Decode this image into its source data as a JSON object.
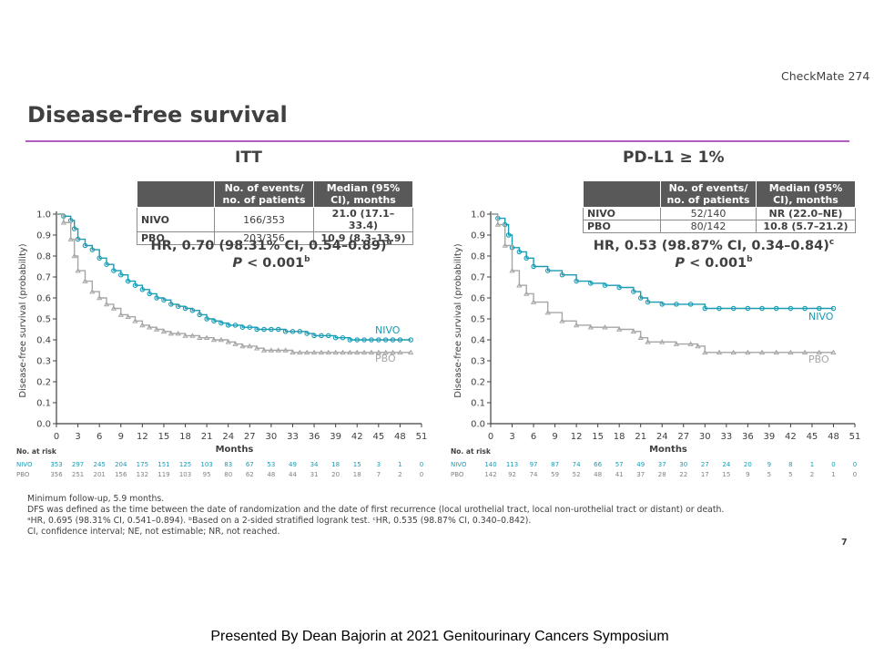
{
  "header": {
    "trial_name": "CheckMate 274",
    "title": "Disease-free survival"
  },
  "colors": {
    "nivo": "#1a9bb3",
    "pbo": "#a6a6a6",
    "rule": "#b05fc0",
    "table_header": "#595959"
  },
  "panels": [
    {
      "title": "ITT",
      "table": {
        "headers": [
          "No. of events/ no. of patients",
          "Median (95% CI), months"
        ],
        "rows": [
          {
            "arm": "NIVO",
            "events": "166/353",
            "median": "21.0 (17.1–33.4)"
          },
          {
            "arm": "PBO",
            "events": "203/356",
            "median": "10.9 (8.3–13.9)"
          }
        ]
      },
      "hr_prefix": "HR, 0.70 (98.31% CI, 0.54–0.89)",
      "hr_sup": "a",
      "p_italic": "P",
      "p_rest": " < 0.001",
      "p_sup": "b",
      "risk": {
        "title": "No. at risk",
        "rows": [
          {
            "arm": "NIVO",
            "values": [
              "353",
              "297",
              "245",
              "204",
              "175",
              "151",
              "125",
              "103",
              "83",
              "67",
              "53",
              "49",
              "34",
              "18",
              "15",
              "3",
              "1",
              "0"
            ]
          },
          {
            "arm": "PBO",
            "values": [
              "356",
              "251",
              "201",
              "156",
              "132",
              "119",
              "103",
              "95",
              "80",
              "62",
              "48",
              "44",
              "31",
              "20",
              "18",
              "7",
              "2",
              "0"
            ]
          }
        ]
      }
    },
    {
      "title": "PD-L1 ≥ 1%",
      "table": {
        "headers": [
          "No. of events/ no. of patients",
          "Median (95% CI), months"
        ],
        "rows": [
          {
            "arm": "NIVO",
            "events": "52/140",
            "median": "NR (22.0–NE)"
          },
          {
            "arm": "PBO",
            "events": "80/142",
            "median": "10.8 (5.7–21.2)"
          }
        ]
      },
      "hr_prefix": "HR, 0.53 (98.87% CI, 0.34–0.84)",
      "hr_sup": "c",
      "p_italic": "P",
      "p_rest": " < 0.001",
      "p_sup": "b",
      "risk": {
        "title": "No. at risk",
        "rows": [
          {
            "arm": "NIVO",
            "values": [
              "140",
              "113",
              "97",
              "87",
              "74",
              "66",
              "57",
              "49",
              "37",
              "30",
              "27",
              "24",
              "20",
              "9",
              "8",
              "1",
              "0",
              "0"
            ]
          },
          {
            "arm": "PBO",
            "values": [
              "142",
              "92",
              "74",
              "59",
              "52",
              "48",
              "41",
              "37",
              "28",
              "22",
              "17",
              "15",
              "9",
              "5",
              "5",
              "2",
              "1",
              "0"
            ]
          }
        ]
      }
    }
  ],
  "chart_data": [
    {
      "type": "line",
      "title": "ITT",
      "xlabel": "Months",
      "ylabel": "Disease-free survival (probability)",
      "xlim": [
        0,
        51
      ],
      "ylim": [
        0,
        1
      ],
      "xticks": [
        "0",
        "3",
        "6",
        "9",
        "12",
        "15",
        "18",
        "21",
        "24",
        "27",
        "30",
        "33",
        "36",
        "39",
        "42",
        "45",
        "48",
        "51"
      ],
      "yticks": [
        "0.0",
        "0.1",
        "0.2",
        "0.3",
        "0.4",
        "0.5",
        "0.6",
        "0.7",
        "0.8",
        "0.9",
        "1.0"
      ],
      "series": [
        {
          "name": "NIVO",
          "x": [
            0,
            1,
            2,
            2.5,
            3,
            4,
            5,
            6,
            7,
            8,
            9,
            10,
            11,
            12,
            13,
            14,
            15,
            16,
            17,
            18,
            19,
            20,
            21,
            22,
            23,
            24,
            25,
            26,
            27,
            28,
            29,
            30,
            31,
            32,
            33,
            34,
            35,
            36,
            37,
            38,
            39,
            40,
            41,
            42,
            43,
            44,
            45,
            46,
            47,
            48,
            49.5
          ],
          "y": [
            1.0,
            0.99,
            0.97,
            0.93,
            0.88,
            0.85,
            0.83,
            0.79,
            0.76,
            0.73,
            0.71,
            0.68,
            0.66,
            0.64,
            0.62,
            0.6,
            0.59,
            0.57,
            0.56,
            0.55,
            0.54,
            0.52,
            0.5,
            0.49,
            0.48,
            0.47,
            0.47,
            0.46,
            0.46,
            0.45,
            0.45,
            0.45,
            0.45,
            0.44,
            0.44,
            0.44,
            0.43,
            0.42,
            0.42,
            0.42,
            0.41,
            0.41,
            0.4,
            0.4,
            0.4,
            0.4,
            0.4,
            0.4,
            0.4,
            0.4,
            0.4
          ]
        },
        {
          "name": "PBO",
          "x": [
            0,
            1,
            2,
            2.5,
            3,
            4,
            5,
            6,
            7,
            8,
            9,
            10,
            11,
            12,
            13,
            14,
            15,
            16,
            17,
            18,
            19,
            20,
            21,
            22,
            23,
            24,
            25,
            26,
            27,
            28,
            29,
            30,
            31,
            32,
            33,
            34,
            35,
            36,
            37,
            38,
            39,
            40,
            41,
            42,
            43,
            44,
            45,
            46,
            47,
            48,
            49.5
          ],
          "y": [
            1.0,
            0.96,
            0.88,
            0.8,
            0.73,
            0.68,
            0.63,
            0.6,
            0.57,
            0.55,
            0.52,
            0.51,
            0.49,
            0.47,
            0.46,
            0.45,
            0.44,
            0.43,
            0.43,
            0.42,
            0.42,
            0.41,
            0.41,
            0.4,
            0.4,
            0.39,
            0.38,
            0.37,
            0.37,
            0.36,
            0.35,
            0.35,
            0.35,
            0.35,
            0.34,
            0.34,
            0.34,
            0.34,
            0.34,
            0.34,
            0.34,
            0.34,
            0.34,
            0.34,
            0.34,
            0.34,
            0.34,
            0.34,
            0.34,
            0.34,
            0.34
          ]
        }
      ],
      "legend": "inline-right"
    },
    {
      "type": "line",
      "title": "PD-L1 ≥ 1%",
      "xlabel": "Months",
      "ylabel": "Disease-free survival (probability)",
      "xlim": [
        0,
        51
      ],
      "ylim": [
        0,
        1
      ],
      "xticks": [
        "0",
        "3",
        "6",
        "9",
        "12",
        "15",
        "18",
        "21",
        "24",
        "27",
        "30",
        "33",
        "36",
        "39",
        "42",
        "45",
        "48",
        "51"
      ],
      "yticks": [
        "0.0",
        "0.1",
        "0.2",
        "0.3",
        "0.4",
        "0.5",
        "0.6",
        "0.7",
        "0.8",
        "0.9",
        "1.0"
      ],
      "series": [
        {
          "name": "NIVO",
          "x": [
            0,
            1,
            2,
            2.5,
            3,
            4,
            5,
            6,
            8,
            10,
            12,
            14,
            16,
            18,
            20,
            21,
            22,
            24,
            26,
            28,
            30,
            32,
            34,
            36,
            38,
            40,
            42,
            44,
            46,
            48
          ],
          "y": [
            1.0,
            0.98,
            0.95,
            0.9,
            0.84,
            0.82,
            0.79,
            0.75,
            0.73,
            0.71,
            0.68,
            0.67,
            0.66,
            0.65,
            0.63,
            0.6,
            0.58,
            0.57,
            0.57,
            0.57,
            0.55,
            0.55,
            0.55,
            0.55,
            0.55,
            0.55,
            0.55,
            0.55,
            0.55,
            0.55
          ]
        },
        {
          "name": "PBO",
          "x": [
            0,
            1,
            2,
            3,
            4,
            5,
            6,
            8,
            10,
            12,
            14,
            16,
            18,
            20,
            21,
            22,
            24,
            26,
            28,
            29,
            30,
            32,
            34,
            36,
            38,
            40,
            42,
            44,
            46,
            48
          ],
          "y": [
            1.0,
            0.95,
            0.85,
            0.73,
            0.66,
            0.62,
            0.58,
            0.53,
            0.49,
            0.47,
            0.46,
            0.46,
            0.45,
            0.44,
            0.41,
            0.39,
            0.39,
            0.38,
            0.38,
            0.37,
            0.34,
            0.34,
            0.34,
            0.34,
            0.34,
            0.34,
            0.34,
            0.34,
            0.34,
            0.34
          ]
        }
      ],
      "legend": "inline-right"
    }
  ],
  "footnotes": [
    "Minimum follow-up, 5.9 months.",
    "DFS was defined as the time between the date of randomization and the date of first recurrence (local urothelial tract, local non-urothelial tract or distant) or death.",
    "ᵃHR, 0.695 (98.31% CI, 0.541–0.894). ᵇBased on a 2-sided stratified logrank test. ᶜHR, 0.535 (98.87% CI, 0.340–0.842).",
    "CI, confidence interval; NE, not estimable; NR, not reached."
  ],
  "page_number": "7",
  "presented_by": "Presented By Dean Bajorin at 2021 Genitourinary  Cancers Symposium"
}
